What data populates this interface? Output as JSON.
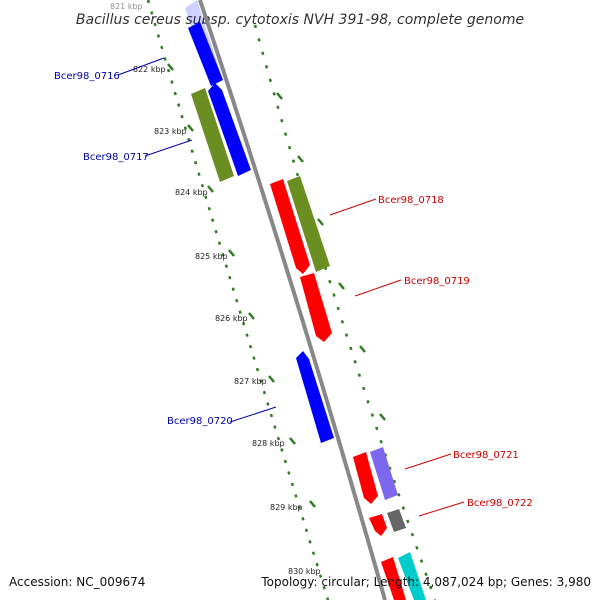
{
  "title": "Bacillus cereus subsp. cytotoxis NVH 391-98, complete genome",
  "footer": {
    "accession": "Accession: NC_009674",
    "summary": "Topology: circular; Length: 4,087,024 bp; Genes: 3,980"
  },
  "colors": {
    "backbone": "#888888",
    "tick": "#2e7d1e",
    "forward_label": "#0000aa",
    "reverse_label": "#cc0000",
    "blue": "#0000ff",
    "olive": "#6b8e23",
    "red": "#ff0000",
    "violet": "#7b68ee",
    "gray": "#666666",
    "cyan": "#00cccc"
  },
  "kbp_labels": [
    "821 kbp",
    "822 kbp",
    "823 kbp",
    "824 kbp",
    "825 kbp",
    "826 kbp",
    "827 kbp",
    "828 kbp",
    "829 kbp",
    "830 kbp"
  ],
  "gene_labels": {
    "g0716": "Bcer98_0716",
    "g0717": "Bcer98_0717",
    "g0718": "Bcer98_0718",
    "g0719": "Bcer98_0719",
    "g0720": "Bcer98_0720",
    "g0721": "Bcer98_0721",
    "g0722": "Bcer98_0722"
  }
}
